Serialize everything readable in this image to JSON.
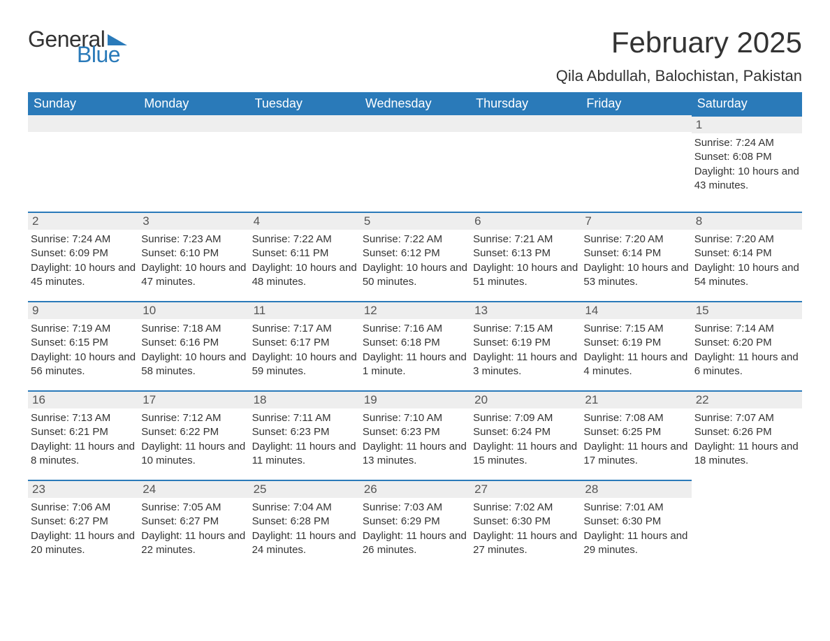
{
  "logo": {
    "text_general": "General",
    "text_blue": "Blue"
  },
  "header": {
    "month_title": "February 2025",
    "location": "Qila Abdullah, Balochistan, Pakistan"
  },
  "colors": {
    "header_bg": "#2a7ab9",
    "header_text": "#ffffff",
    "day_num_bg": "#eeeeee",
    "accent_border": "#2a7ab9",
    "body_text": "#333333",
    "page_bg": "#ffffff"
  },
  "day_names": [
    "Sunday",
    "Monday",
    "Tuesday",
    "Wednesday",
    "Thursday",
    "Friday",
    "Saturday"
  ],
  "weeks": [
    [
      {
        "empty": true
      },
      {
        "empty": true
      },
      {
        "empty": true
      },
      {
        "empty": true
      },
      {
        "empty": true
      },
      {
        "empty": true
      },
      {
        "day": "1",
        "sunrise": "Sunrise: 7:24 AM",
        "sunset": "Sunset: 6:08 PM",
        "daylight": "Daylight: 10 hours and 43 minutes."
      }
    ],
    [
      {
        "day": "2",
        "sunrise": "Sunrise: 7:24 AM",
        "sunset": "Sunset: 6:09 PM",
        "daylight": "Daylight: 10 hours and 45 minutes."
      },
      {
        "day": "3",
        "sunrise": "Sunrise: 7:23 AM",
        "sunset": "Sunset: 6:10 PM",
        "daylight": "Daylight: 10 hours and 47 minutes."
      },
      {
        "day": "4",
        "sunrise": "Sunrise: 7:22 AM",
        "sunset": "Sunset: 6:11 PM",
        "daylight": "Daylight: 10 hours and 48 minutes."
      },
      {
        "day": "5",
        "sunrise": "Sunrise: 7:22 AM",
        "sunset": "Sunset: 6:12 PM",
        "daylight": "Daylight: 10 hours and 50 minutes."
      },
      {
        "day": "6",
        "sunrise": "Sunrise: 7:21 AM",
        "sunset": "Sunset: 6:13 PM",
        "daylight": "Daylight: 10 hours and 51 minutes."
      },
      {
        "day": "7",
        "sunrise": "Sunrise: 7:20 AM",
        "sunset": "Sunset: 6:14 PM",
        "daylight": "Daylight: 10 hours and 53 minutes."
      },
      {
        "day": "8",
        "sunrise": "Sunrise: 7:20 AM",
        "sunset": "Sunset: 6:14 PM",
        "daylight": "Daylight: 10 hours and 54 minutes."
      }
    ],
    [
      {
        "day": "9",
        "sunrise": "Sunrise: 7:19 AM",
        "sunset": "Sunset: 6:15 PM",
        "daylight": "Daylight: 10 hours and 56 minutes."
      },
      {
        "day": "10",
        "sunrise": "Sunrise: 7:18 AM",
        "sunset": "Sunset: 6:16 PM",
        "daylight": "Daylight: 10 hours and 58 minutes."
      },
      {
        "day": "11",
        "sunrise": "Sunrise: 7:17 AM",
        "sunset": "Sunset: 6:17 PM",
        "daylight": "Daylight: 10 hours and 59 minutes."
      },
      {
        "day": "12",
        "sunrise": "Sunrise: 7:16 AM",
        "sunset": "Sunset: 6:18 PM",
        "daylight": "Daylight: 11 hours and 1 minute."
      },
      {
        "day": "13",
        "sunrise": "Sunrise: 7:15 AM",
        "sunset": "Sunset: 6:19 PM",
        "daylight": "Daylight: 11 hours and 3 minutes."
      },
      {
        "day": "14",
        "sunrise": "Sunrise: 7:15 AM",
        "sunset": "Sunset: 6:19 PM",
        "daylight": "Daylight: 11 hours and 4 minutes."
      },
      {
        "day": "15",
        "sunrise": "Sunrise: 7:14 AM",
        "sunset": "Sunset: 6:20 PM",
        "daylight": "Daylight: 11 hours and 6 minutes."
      }
    ],
    [
      {
        "day": "16",
        "sunrise": "Sunrise: 7:13 AM",
        "sunset": "Sunset: 6:21 PM",
        "daylight": "Daylight: 11 hours and 8 minutes."
      },
      {
        "day": "17",
        "sunrise": "Sunrise: 7:12 AM",
        "sunset": "Sunset: 6:22 PM",
        "daylight": "Daylight: 11 hours and 10 minutes."
      },
      {
        "day": "18",
        "sunrise": "Sunrise: 7:11 AM",
        "sunset": "Sunset: 6:23 PM",
        "daylight": "Daylight: 11 hours and 11 minutes."
      },
      {
        "day": "19",
        "sunrise": "Sunrise: 7:10 AM",
        "sunset": "Sunset: 6:23 PM",
        "daylight": "Daylight: 11 hours and 13 minutes."
      },
      {
        "day": "20",
        "sunrise": "Sunrise: 7:09 AM",
        "sunset": "Sunset: 6:24 PM",
        "daylight": "Daylight: 11 hours and 15 minutes."
      },
      {
        "day": "21",
        "sunrise": "Sunrise: 7:08 AM",
        "sunset": "Sunset: 6:25 PM",
        "daylight": "Daylight: 11 hours and 17 minutes."
      },
      {
        "day": "22",
        "sunrise": "Sunrise: 7:07 AM",
        "sunset": "Sunset: 6:26 PM",
        "daylight": "Daylight: 11 hours and 18 minutes."
      }
    ],
    [
      {
        "day": "23",
        "sunrise": "Sunrise: 7:06 AM",
        "sunset": "Sunset: 6:27 PM",
        "daylight": "Daylight: 11 hours and 20 minutes."
      },
      {
        "day": "24",
        "sunrise": "Sunrise: 7:05 AM",
        "sunset": "Sunset: 6:27 PM",
        "daylight": "Daylight: 11 hours and 22 minutes."
      },
      {
        "day": "25",
        "sunrise": "Sunrise: 7:04 AM",
        "sunset": "Sunset: 6:28 PM",
        "daylight": "Daylight: 11 hours and 24 minutes."
      },
      {
        "day": "26",
        "sunrise": "Sunrise: 7:03 AM",
        "sunset": "Sunset: 6:29 PM",
        "daylight": "Daylight: 11 hours and 26 minutes."
      },
      {
        "day": "27",
        "sunrise": "Sunrise: 7:02 AM",
        "sunset": "Sunset: 6:30 PM",
        "daylight": "Daylight: 11 hours and 27 minutes."
      },
      {
        "day": "28",
        "sunrise": "Sunrise: 7:01 AM",
        "sunset": "Sunset: 6:30 PM",
        "daylight": "Daylight: 11 hours and 29 minutes."
      },
      {
        "empty": true
      }
    ]
  ]
}
